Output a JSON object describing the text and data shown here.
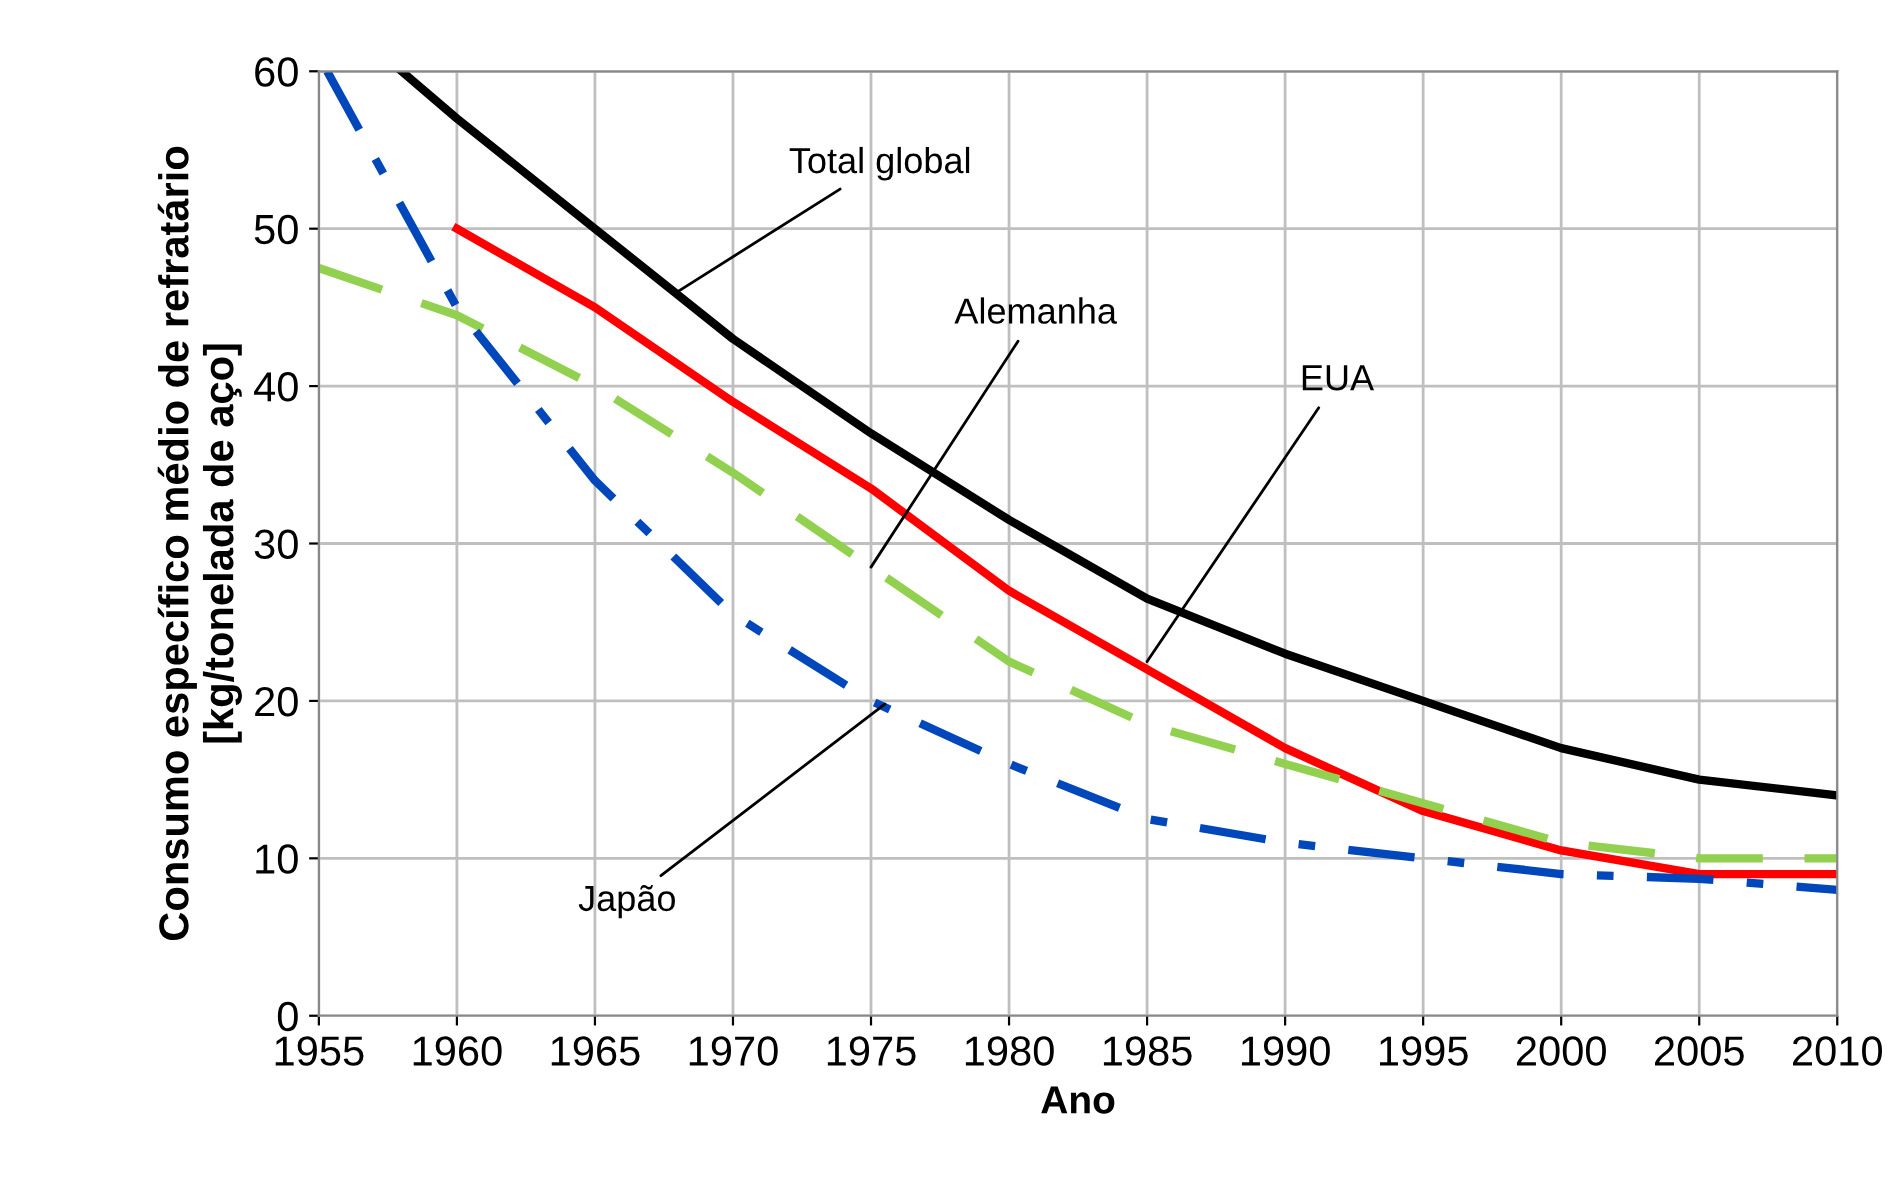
{
  "chart_data": {
    "type": "line",
    "xlabel": "Ano",
    "ylabel": "Consumo específico médio de refratário\n[kg/tonelada de aço]",
    "series": [
      {
        "color": "#000000",
        "line_style": "solid",
        "x": [
          1958,
          1960,
          1965,
          1970,
          1975,
          1980,
          1985,
          1990,
          1995,
          2000,
          2005,
          2010
        ],
        "values": [
          60,
          57,
          50,
          43,
          37,
          31.5,
          26.5,
          23,
          20,
          17,
          15,
          14
        ]
      },
      {
        "color": "#ff0000",
        "line_style": "solid",
        "x": [
          1960,
          1965,
          1970,
          1975,
          1980,
          1985,
          1990,
          1995,
          2000,
          2005,
          2010
        ],
        "values": [
          50,
          45,
          39,
          33.5,
          27,
          22,
          17,
          13,
          10.5,
          9,
          9
        ]
      },
      {
        "color": "#92d050",
        "line_style": "dashed",
        "x": [
          1955,
          1960,
          1965,
          1970,
          1975,
          1980,
          1985,
          1990,
          1995,
          2000,
          2005,
          2010
        ],
        "values": [
          47.5,
          44.5,
          40,
          34.5,
          28.5,
          22.5,
          18.5,
          16,
          13.5,
          11,
          10,
          10
        ]
      },
      {
        "color": "#0047bb",
        "line_style": "dashdot",
        "x": [
          1955.3,
          1960,
          1965,
          1970,
          1975,
          1980,
          1985,
          1990,
          1995,
          2000,
          2005,
          2010
        ],
        "values": [
          60,
          45,
          34,
          25.5,
          20,
          16,
          12.5,
          11,
          10,
          9,
          8.7,
          8
        ]
      }
    ],
    "annotations": [
      {
        "text": "Total global",
        "x": 1968,
        "y": 46
      },
      {
        "text": "Alemanha",
        "x": 1975,
        "y": 28.5
      },
      {
        "text": "EUA",
        "x": 1985,
        "y": 22.5
      },
      {
        "text": "Japão",
        "x": 1975.5,
        "y": 19.8
      }
    ],
    "xlim": [
      1955,
      2010
    ],
    "ylim": [
      0,
      60
    ],
    "xticks": [
      1955,
      1960,
      1965,
      1970,
      1975,
      1980,
      1985,
      1990,
      1995,
      2000,
      2005,
      2010
    ],
    "yticks": [
      0,
      10,
      20,
      30,
      40,
      50,
      60
    ],
    "grid": true,
    "legend": false,
    "marker": "none"
  }
}
